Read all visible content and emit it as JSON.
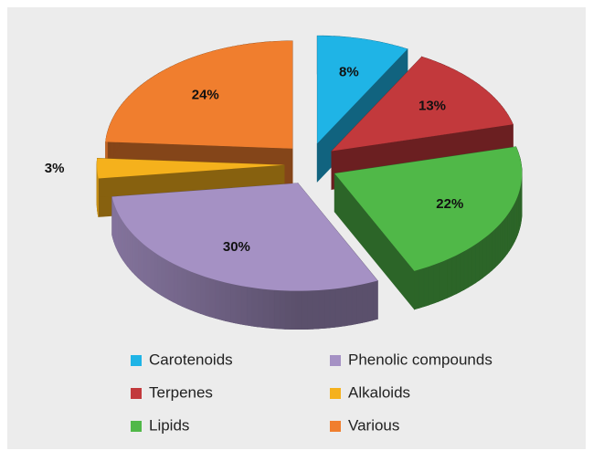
{
  "chart_data": {
    "type": "pie",
    "categories": [
      "Carotenoids",
      "Terpenes",
      "Lipids",
      "Phenolic compounds",
      "Alkaloids",
      "Various"
    ],
    "values": [
      8,
      13,
      22,
      30,
      3,
      24
    ],
    "value_labels": [
      "8%",
      "13%",
      "22%",
      "30%",
      "3%",
      "24%"
    ],
    "colors": [
      "#1fb4e6",
      "#c2393c",
      "#50b848",
      "#a591c4",
      "#f5b11c",
      "#f07e2e"
    ],
    "legend": "bottom"
  }
}
